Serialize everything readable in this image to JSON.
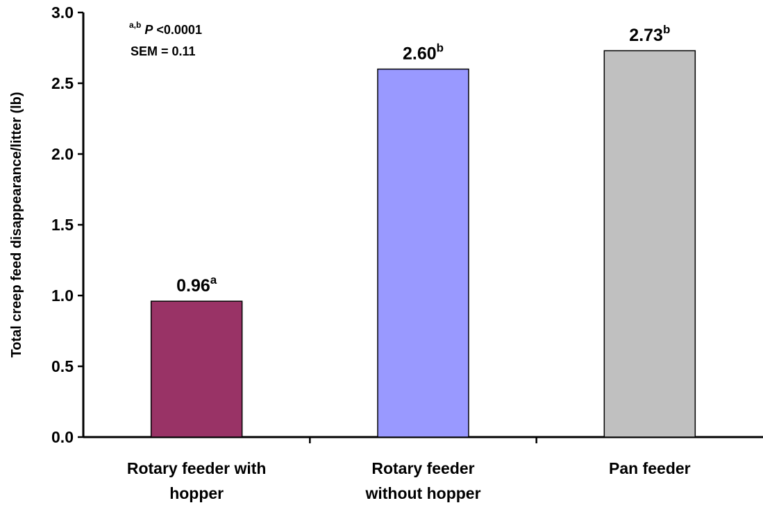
{
  "chart_data": {
    "type": "bar",
    "categories": [
      [
        "Rotary feeder with",
        "hopper"
      ],
      [
        "Rotary feeder",
        "without hopper"
      ],
      [
        "Pan feeder"
      ]
    ],
    "values": [
      0.96,
      2.6,
      2.73
    ],
    "value_labels": [
      "0.96",
      "2.60",
      "2.73"
    ],
    "superscripts": [
      "a",
      "b",
      "b"
    ],
    "colors": [
      "#993366",
      "#9999ff",
      "#c0c0c0"
    ],
    "bar_outline_color": "#000000",
    "ylabel": "Total creep feed disappearance/litter (lb)",
    "xlabel": "",
    "ylim": [
      0,
      3.0
    ],
    "yticks": [
      "0.0",
      "0.5",
      "1.0",
      "1.5",
      "2.0",
      "2.5",
      "3.0"
    ],
    "grid": false,
    "legend": "none",
    "annotations": {
      "significance_superscript": "a,b",
      "significance_p": "P",
      "significance_text": "<0.0001",
      "sem_text": "SEM = 0.11"
    }
  }
}
